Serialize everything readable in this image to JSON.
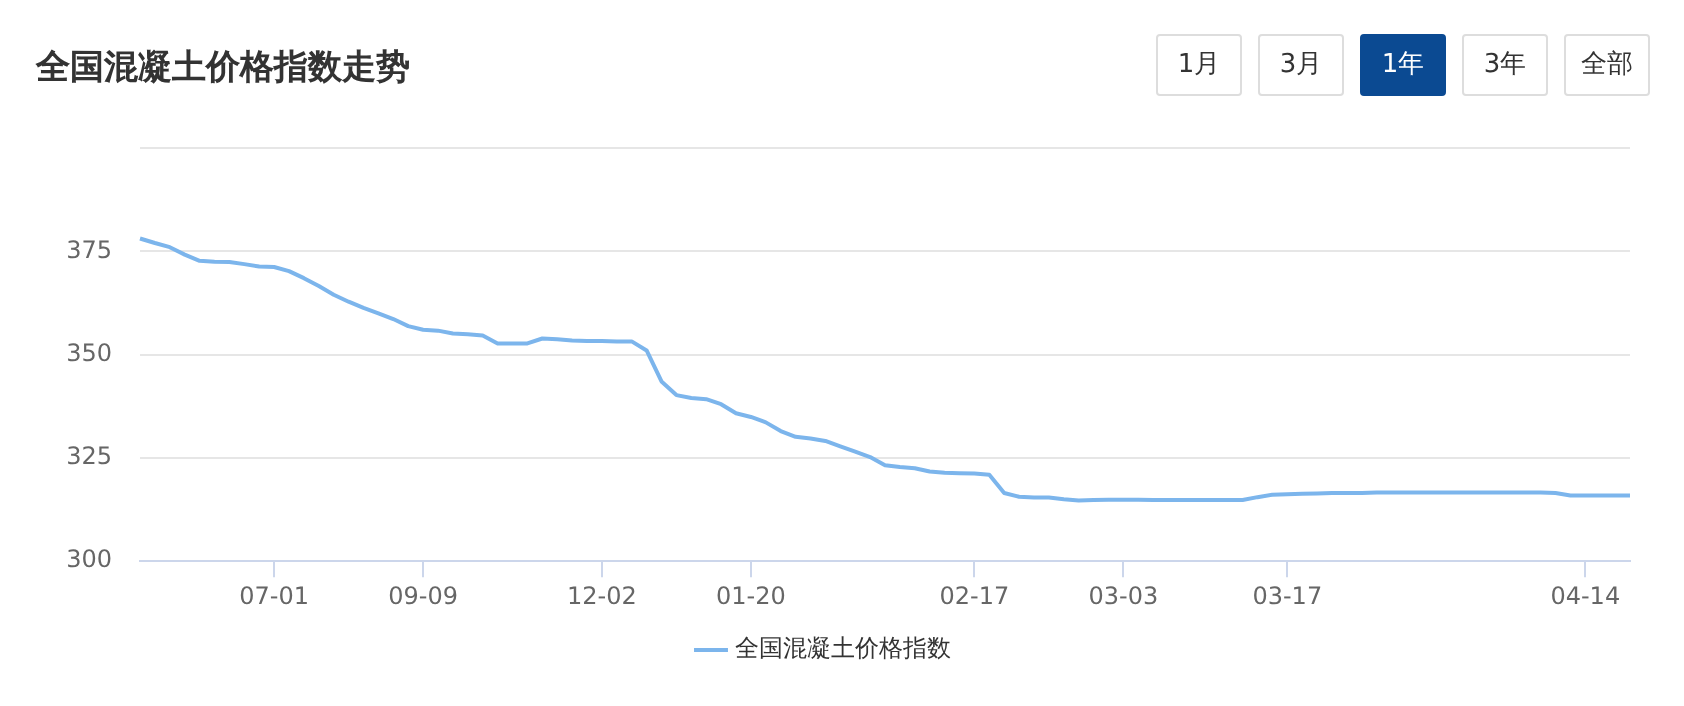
{
  "chart_data": {
    "type": "line",
    "title": "全国混凝土价格指数走势",
    "annotations": [
      "1月",
      "3月",
      "1年",
      "3年",
      "全部"
    ],
    "categories": [
      null,
      null,
      null,
      null,
      null,
      null,
      null,
      null,
      null,
      "07-01",
      null,
      null,
      null,
      null,
      null,
      null,
      null,
      null,
      null,
      "09-09",
      null,
      null,
      null,
      null,
      null,
      null,
      null,
      null,
      null,
      null,
      null,
      "12-02",
      null,
      null,
      null,
      null,
      null,
      null,
      null,
      null,
      null,
      "01-20",
      null,
      null,
      null,
      null,
      null,
      null,
      null,
      null,
      null,
      null,
      null,
      null,
      null,
      null,
      "02-17",
      null,
      null,
      null,
      null,
      null,
      null,
      null,
      null,
      null,
      "03-03",
      null,
      null,
      null,
      null,
      null,
      null,
      null,
      null,
      null,
      null,
      "03-17",
      null,
      null,
      null,
      null,
      null,
      null,
      null,
      null,
      null,
      null,
      null,
      null,
      null,
      null,
      null,
      null,
      null,
      null,
      null,
      "04-14",
      null,
      null,
      null
    ],
    "series": [
      {
        "name": "全国混凝土价格指数",
        "color": "#7cb5ec",
        "values": [
          378.1,
          377,
          376,
          374.2,
          372.7,
          372.5,
          372.4,
          371.9,
          371.3,
          371.2,
          370.2,
          368.5,
          366.6,
          364.5,
          362.8,
          361.3,
          360,
          358.6,
          356.9,
          356,
          355.8,
          355.1,
          354.9,
          354.6,
          352.7,
          352.7,
          352.7,
          353.9,
          353.7,
          353.4,
          353.3,
          353.3,
          353.2,
          353.2,
          351,
          343.5,
          340.2,
          339.5,
          339.2,
          338,
          335.8,
          334.9,
          333.6,
          331.5,
          330.1,
          329.7,
          329.1,
          327.8,
          326.5,
          325.2,
          323.2,
          322.8,
          322.5,
          321.7,
          321.4,
          321.3,
          321.2,
          320.9,
          316.5,
          315.6,
          315.4,
          315.4,
          315,
          314.7,
          314.8,
          314.9,
          314.9,
          314.9,
          314.8,
          314.8,
          314.8,
          314.8,
          314.8,
          314.8,
          314.8,
          315.5,
          316.1,
          316.2,
          316.3,
          316.4,
          316.5,
          316.5,
          316.5,
          316.6,
          316.6,
          316.6,
          316.6,
          316.6,
          316.6,
          316.6,
          316.6,
          316.6,
          316.6,
          316.6,
          316.6,
          316.5,
          315.9,
          315.9,
          315.9,
          315.9,
          315.9
        ]
      }
    ],
    "ylim": [
      300,
      400
    ],
    "yticks": [
      300,
      325,
      350,
      375,
      {
        "value": 400,
        "label": null
      }
    ],
    "grid": "y",
    "legend": "bottom",
    "marker": "none",
    "line_style": "solid"
  }
}
